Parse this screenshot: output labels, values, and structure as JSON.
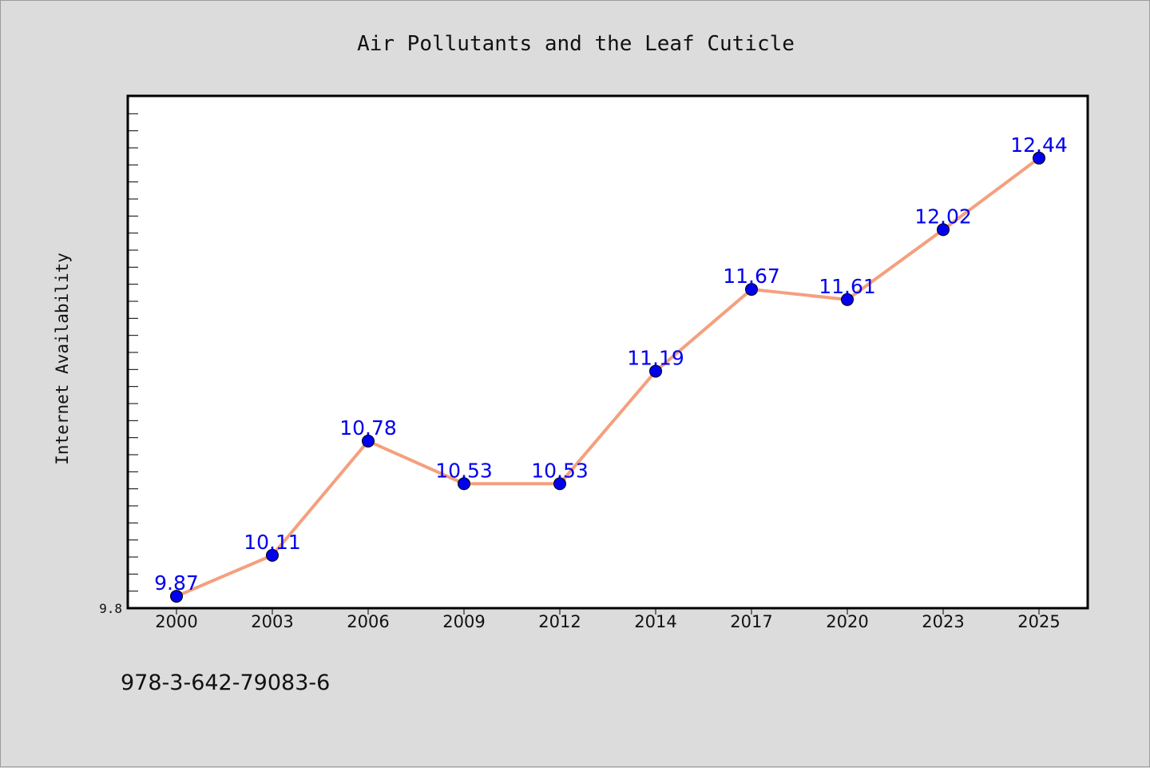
{
  "chart_data": {
    "type": "line",
    "title": "Air Pollutants and the Leaf Cuticle",
    "xlabel": "",
    "ylabel": "Internet Availability",
    "categories": [
      "2000",
      "2003",
      "2006",
      "2009",
      "2012",
      "2014",
      "2017",
      "2020",
      "2023",
      "2025"
    ],
    "series": [
      {
        "values": [
          9.87,
          10.11,
          10.78,
          10.53,
          10.53,
          11.19,
          11.67,
          11.61,
          12.02,
          12.44
        ],
        "line_color": "#f4a07e",
        "marker_color": "#0000ee"
      }
    ],
    "data_labels": [
      "9.87",
      "10.11",
      "10.78",
      "10.53",
      "10.53",
      "11.19",
      "11.67",
      "11.61",
      "12.02",
      "12.44"
    ],
    "ylim": [
      9.8,
      12.8
    ],
    "y_tick_labels": [
      "9.8"
    ],
    "grid": false,
    "legend": "none"
  },
  "footnote": "978-3-642-79083-6"
}
